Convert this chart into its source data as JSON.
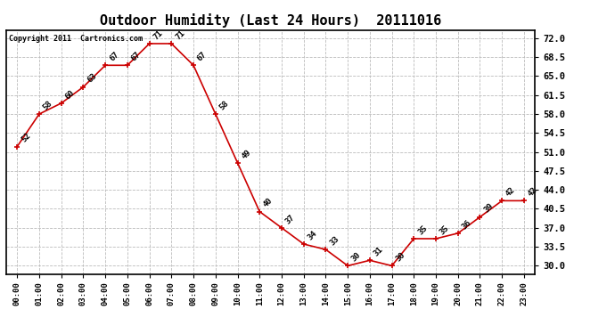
{
  "title": "Outdoor Humidity (Last 24 Hours)  20111016",
  "copyright": "Copyright 2011  Cartronics.com",
  "hours": [
    "00:00",
    "01:00",
    "02:00",
    "03:00",
    "04:00",
    "05:00",
    "06:00",
    "07:00",
    "08:00",
    "09:00",
    "10:00",
    "11:00",
    "12:00",
    "13:00",
    "14:00",
    "15:00",
    "16:00",
    "17:00",
    "18:00",
    "19:00",
    "20:00",
    "21:00",
    "22:00",
    "23:00"
  ],
  "values": [
    52,
    58,
    60,
    63,
    67,
    67,
    71,
    71,
    67,
    58,
    49,
    40,
    37,
    34,
    33,
    30,
    31,
    30,
    35,
    35,
    36,
    39,
    42,
    42
  ],
  "yticks": [
    30.0,
    33.5,
    37.0,
    40.5,
    44.0,
    47.5,
    51.0,
    54.5,
    58.0,
    61.5,
    65.0,
    68.5,
    72.0
  ],
  "ylim": [
    28.5,
    73.5
  ],
  "line_color": "#cc0000",
  "marker_color": "#cc0000",
  "bg_color": "#ffffff",
  "grid_color": "#bbbbbb",
  "title_fontsize": 11,
  "annot_fontsize": 6.5
}
